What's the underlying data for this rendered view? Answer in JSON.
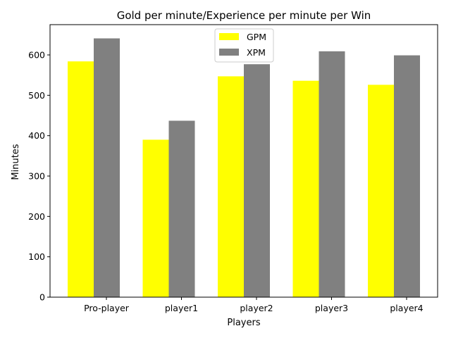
{
  "chart_data": {
    "type": "bar",
    "title": "Gold per minute/Experience per minute per Win",
    "xlabel": "Players",
    "ylabel": "Minutes",
    "categories": [
      "Pro-player",
      "player1",
      "player2",
      "player3",
      "player4"
    ],
    "series": [
      {
        "name": "GPM",
        "values": [
          584,
          390,
          547,
          536,
          526
        ],
        "color": "#ffff00"
      },
      {
        "name": "XPM",
        "values": [
          641,
          437,
          577,
          609,
          599
        ],
        "color": "#808080"
      }
    ],
    "ylim": [
      0,
      675
    ],
    "yticks": [
      0,
      100,
      200,
      300,
      400,
      500,
      600
    ],
    "grid": false,
    "legend_position": "top-center"
  }
}
